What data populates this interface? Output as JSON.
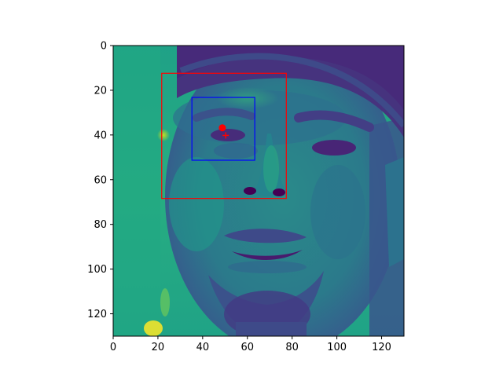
{
  "image": {
    "subject": "grayscale face photo rendered with viridis colormap",
    "colormap": "viridis",
    "colors": {
      "low": "#440154",
      "mid_low": "#3b528b",
      "mid": "#21918c",
      "mid_high": "#5ec962",
      "high": "#fde725"
    }
  },
  "axes": {
    "xlim": [
      0,
      130
    ],
    "ylim": [
      130,
      0
    ],
    "x_ticks": [
      "0",
      "20",
      "40",
      "60",
      "80",
      "100",
      "120"
    ],
    "y_ticks": [
      "0",
      "20",
      "40",
      "60",
      "80",
      "100",
      "120"
    ]
  },
  "overlays": {
    "outer_box": {
      "color": "#ff0000",
      "x0": 21.7,
      "y0": 12.4,
      "x1": 77.4,
      "y1": 68.4
    },
    "inner_box": {
      "color": "#0000ff",
      "x0": 35.2,
      "y0": 23.2,
      "x1": 63.3,
      "y1": 51.3
    },
    "dot": {
      "color": "#ff0000",
      "x": 48.8,
      "y": 36.8
    },
    "cross": {
      "color": "#ff0000",
      "x": 50.3,
      "y": 40.2
    }
  }
}
